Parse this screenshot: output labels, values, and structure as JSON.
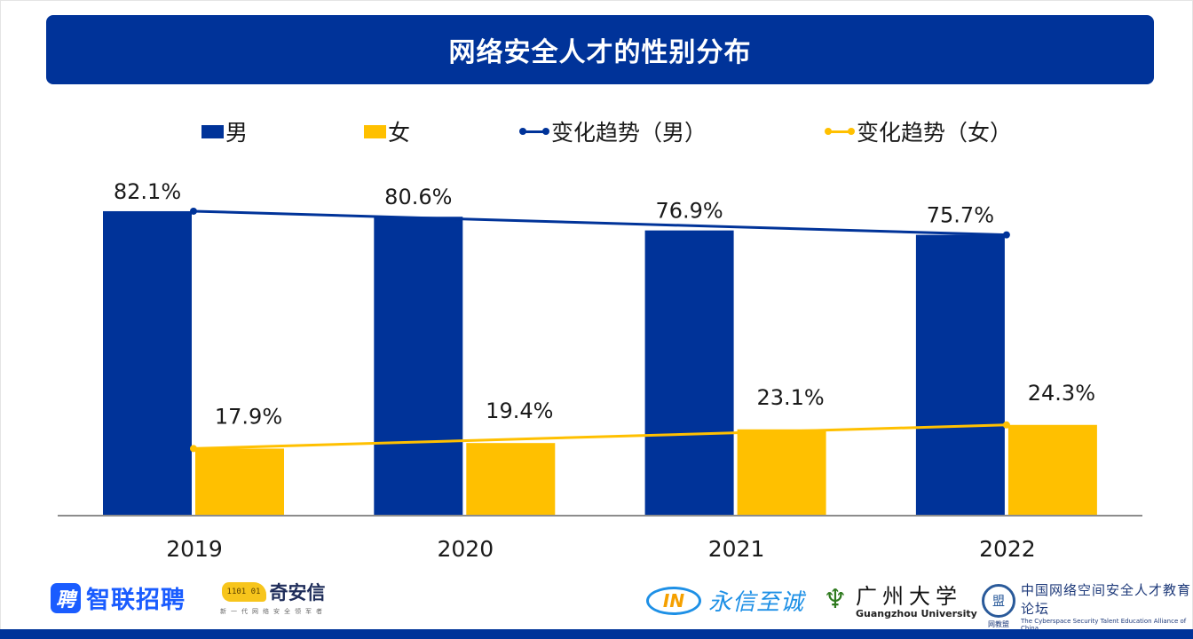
{
  "header": {
    "title": "网络安全人才的性别分布"
  },
  "legend": [
    {
      "label": "男",
      "kind": "bar",
      "color": "#003399"
    },
    {
      "label": "女",
      "kind": "bar",
      "color": "#FFC000"
    },
    {
      "label": "变化趋势（男）",
      "kind": "line",
      "color": "#003399"
    },
    {
      "label": "变化趋势（女）",
      "kind": "line",
      "color": "#FFC000"
    }
  ],
  "chart_data": {
    "type": "bar",
    "title": "网络安全人才的性别分布",
    "xlabel": "",
    "ylabel": "",
    "ylim": [
      0,
      100
    ],
    "grid": false,
    "legend_position": "top",
    "categories": [
      "2019",
      "2020",
      "2021",
      "2022"
    ],
    "series": [
      {
        "name": "男",
        "type": "bar",
        "color": "#003399",
        "values": [
          82.1,
          80.6,
          76.9,
          75.7
        ],
        "labels": [
          "82.1%",
          "80.6%",
          "76.9%",
          "75.7%"
        ]
      },
      {
        "name": "女",
        "type": "bar",
        "color": "#FFC000",
        "values": [
          17.9,
          19.4,
          23.1,
          24.3
        ],
        "labels": [
          "17.9%",
          "19.4%",
          "23.1%",
          "24.3%"
        ]
      },
      {
        "name": "变化趋势（男）",
        "type": "line",
        "color": "#003399",
        "x": [
          "2019",
          "2022"
        ],
        "values": [
          82.1,
          75.7
        ]
      },
      {
        "name": "变化趋势（女）",
        "type": "line",
        "color": "#FFC000",
        "x": [
          "2019",
          "2022"
        ],
        "values": [
          17.9,
          24.3
        ]
      }
    ]
  },
  "logos": {
    "zhaopin": {
      "icon": "聘",
      "text": "智联招聘"
    },
    "qianxin": {
      "icon": "1101 01",
      "text": "奇安信",
      "slogan": "新一代网络安全领军者"
    },
    "yongxin": {
      "icon": "IN",
      "text": "永信至诚"
    },
    "gzhu": {
      "cn": "广州大学",
      "en": "Guangzhou University"
    },
    "alliance": {
      "seal": "盟",
      "cn": "中国网络空间安全人才教育论坛",
      "en": "The Cyberspace Security Talent Education Alliance of China",
      "short": "网教盟"
    }
  }
}
